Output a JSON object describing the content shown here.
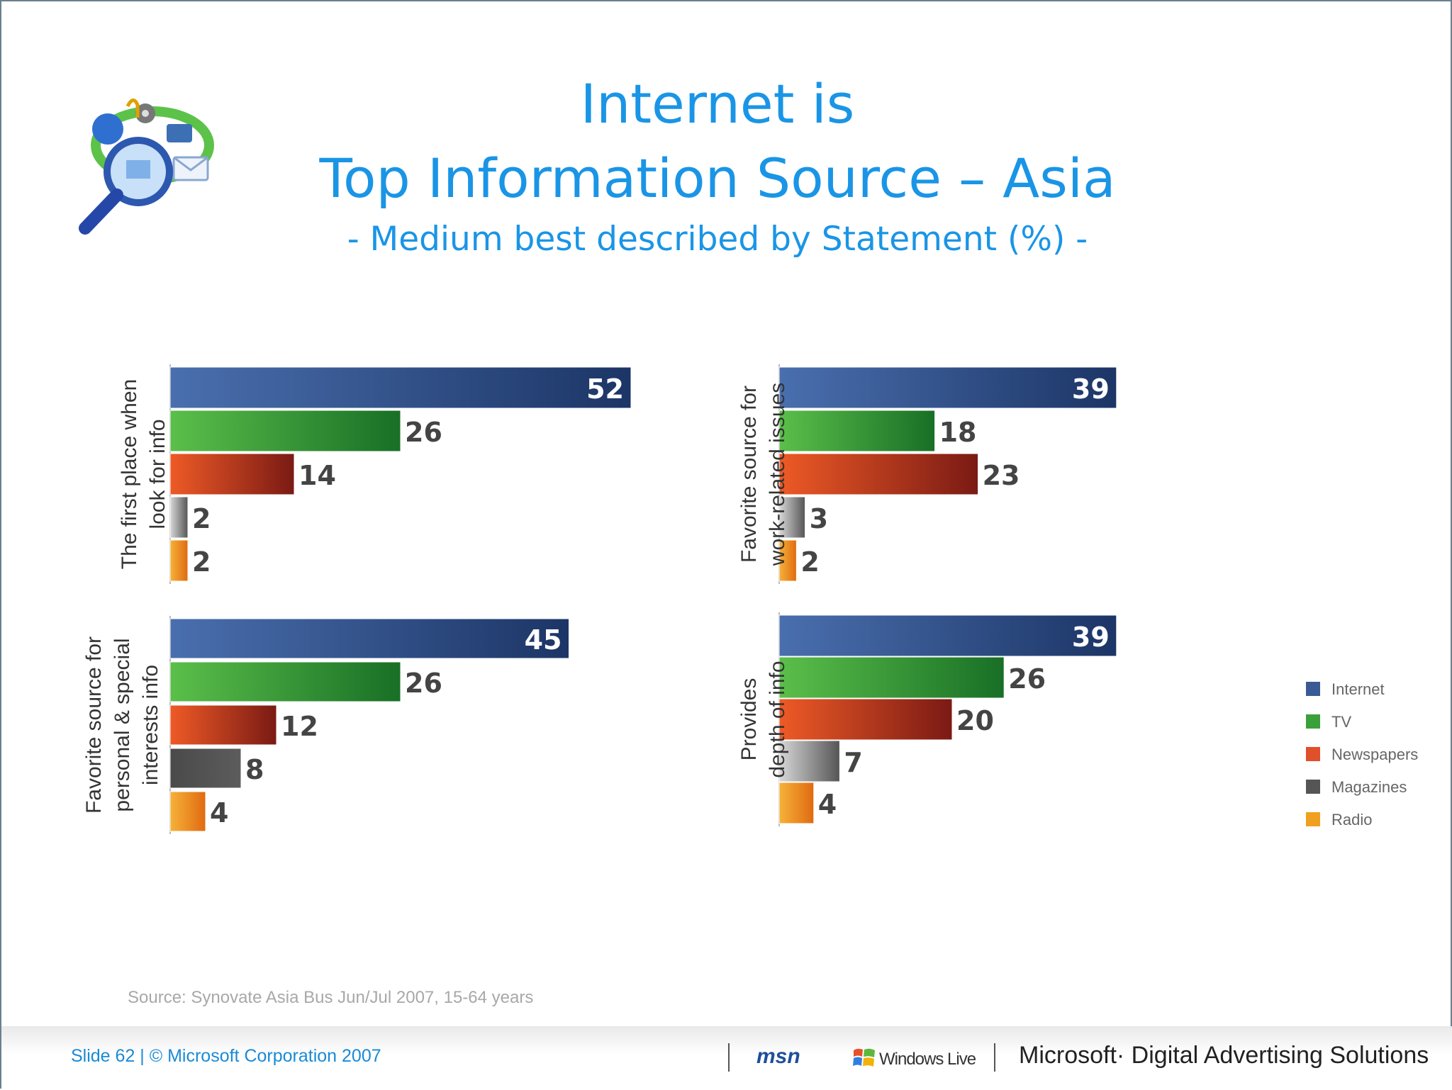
{
  "slide": {
    "title_line1": "Internet is",
    "title_line2": "Top Information Source – Asia",
    "subtitle": "- Medium best described by Statement (%) -",
    "source": "Source: Synovate Asia Bus Jun/Jul 2007, 15-64 years",
    "footer_left": "Slide 62 | © Microsoft Corporation 2007",
    "footer_msn": "msn",
    "footer_windows_live": "Windows Live",
    "footer_brand": "Microsoft· Digital Advertising Solutions",
    "logo_icon": "media-search-icon"
  },
  "colors": {
    "title": "#1a95e6",
    "Internet": "#3a5a96",
    "TV": "#3aa03a",
    "Newspapers": "#e0502a",
    "Magazines": "#555555",
    "Radio": "#f0a020"
  },
  "chart_data": [
    {
      "type": "bar",
      "orientation": "horizontal",
      "category_label": "The first place when look for info",
      "series": [
        "Internet",
        "TV",
        "Newspapers",
        "Magazines",
        "Radio"
      ],
      "values": [
        52,
        26,
        14,
        2,
        2
      ],
      "xlim": [
        0,
        52
      ],
      "legend": "right"
    },
    {
      "type": "bar",
      "orientation": "horizontal",
      "category_label": "Favorite source for work-related issues",
      "series": [
        "Internet",
        "TV",
        "Newspapers",
        "Magazines",
        "Radio"
      ],
      "values": [
        39,
        18,
        23,
        3,
        2
      ],
      "xlim": [
        0,
        52
      ],
      "legend": "right"
    },
    {
      "type": "bar",
      "orientation": "horizontal",
      "category_label": "Favorite source for personal & special interests info",
      "series": [
        "Internet",
        "TV",
        "Newspapers",
        "Magazines",
        "Radio"
      ],
      "values": [
        45,
        26,
        12,
        8,
        4
      ],
      "xlim": [
        0,
        52
      ],
      "legend": "right"
    },
    {
      "type": "bar",
      "orientation": "horizontal",
      "category_label": "Provides depth of info",
      "series": [
        "Internet",
        "TV",
        "Newspapers",
        "Magazines",
        "Radio"
      ],
      "values": [
        39,
        26,
        20,
        7,
        4
      ],
      "xlim": [
        0,
        52
      ],
      "legend": "right"
    }
  ],
  "legend": {
    "entries": [
      "Internet",
      "TV",
      "Newspapers",
      "Magazines",
      "Radio"
    ]
  }
}
